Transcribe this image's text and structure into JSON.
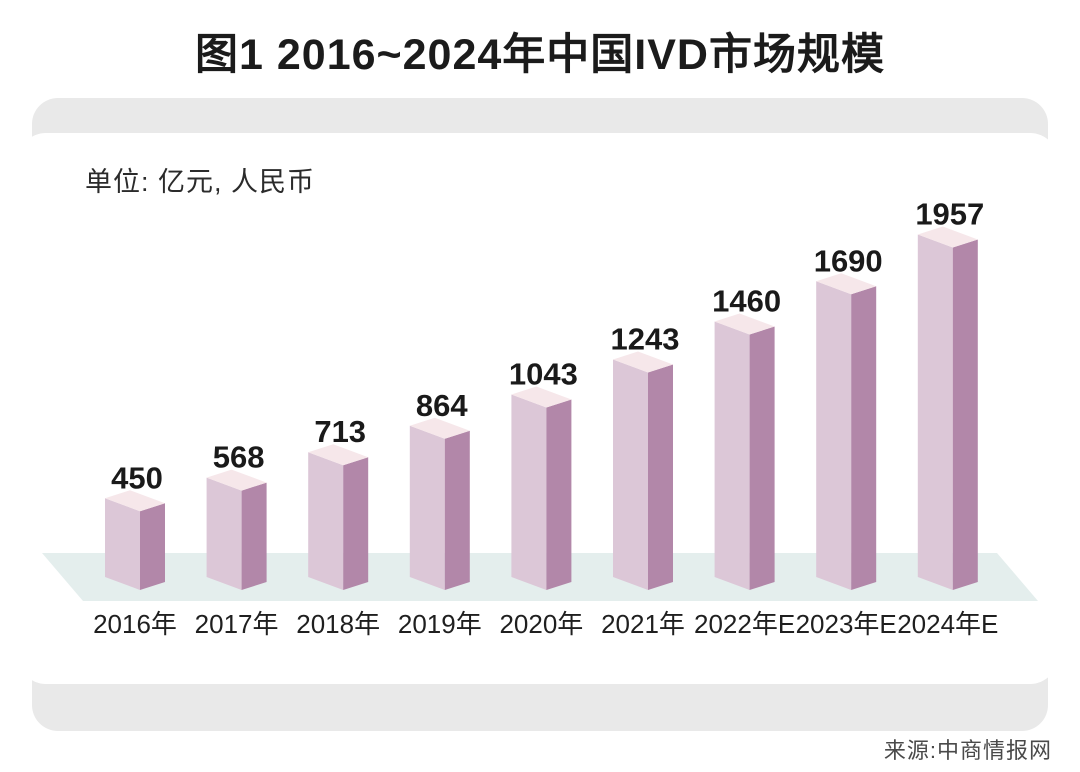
{
  "page": {
    "title": "图1 2016~2024年中国IVD市场规模",
    "unit_label": "单位: 亿元, 人民币",
    "source": "来源:中商情报网"
  },
  "colors": {
    "bar_top": "#f6e7ea",
    "bar_light": "#dcc7d7",
    "bar_dark": "#b287a9",
    "floor": "#e4eeed",
    "card_bg": "#e9e9e9",
    "panel_bg": "#ffffff",
    "title_text": "#1b1b1b",
    "value_text": "#1a1a1a",
    "axis_text": "#1f1f1f",
    "source_text": "#4a4a4a"
  },
  "chart_data": {
    "type": "bar",
    "style": "3d-column",
    "title": "图1 2016~2024年中国IVD市场规模",
    "unit": "亿元, 人民币",
    "categories": [
      "2016年",
      "2017年",
      "2018年",
      "2019年",
      "2020年",
      "2021年",
      "2022年E",
      "2023年E",
      "2024年E"
    ],
    "values": [
      450,
      568,
      713,
      864,
      1043,
      1243,
      1460,
      1690,
      1957
    ],
    "data_labels": [
      450,
      568,
      713,
      864,
      1043,
      1243,
      1460,
      1690,
      1957
    ],
    "xlabel": "",
    "ylabel": "",
    "ylim": [
      0,
      2100
    ],
    "grid": false,
    "legend": false,
    "source": "中商情报网"
  }
}
